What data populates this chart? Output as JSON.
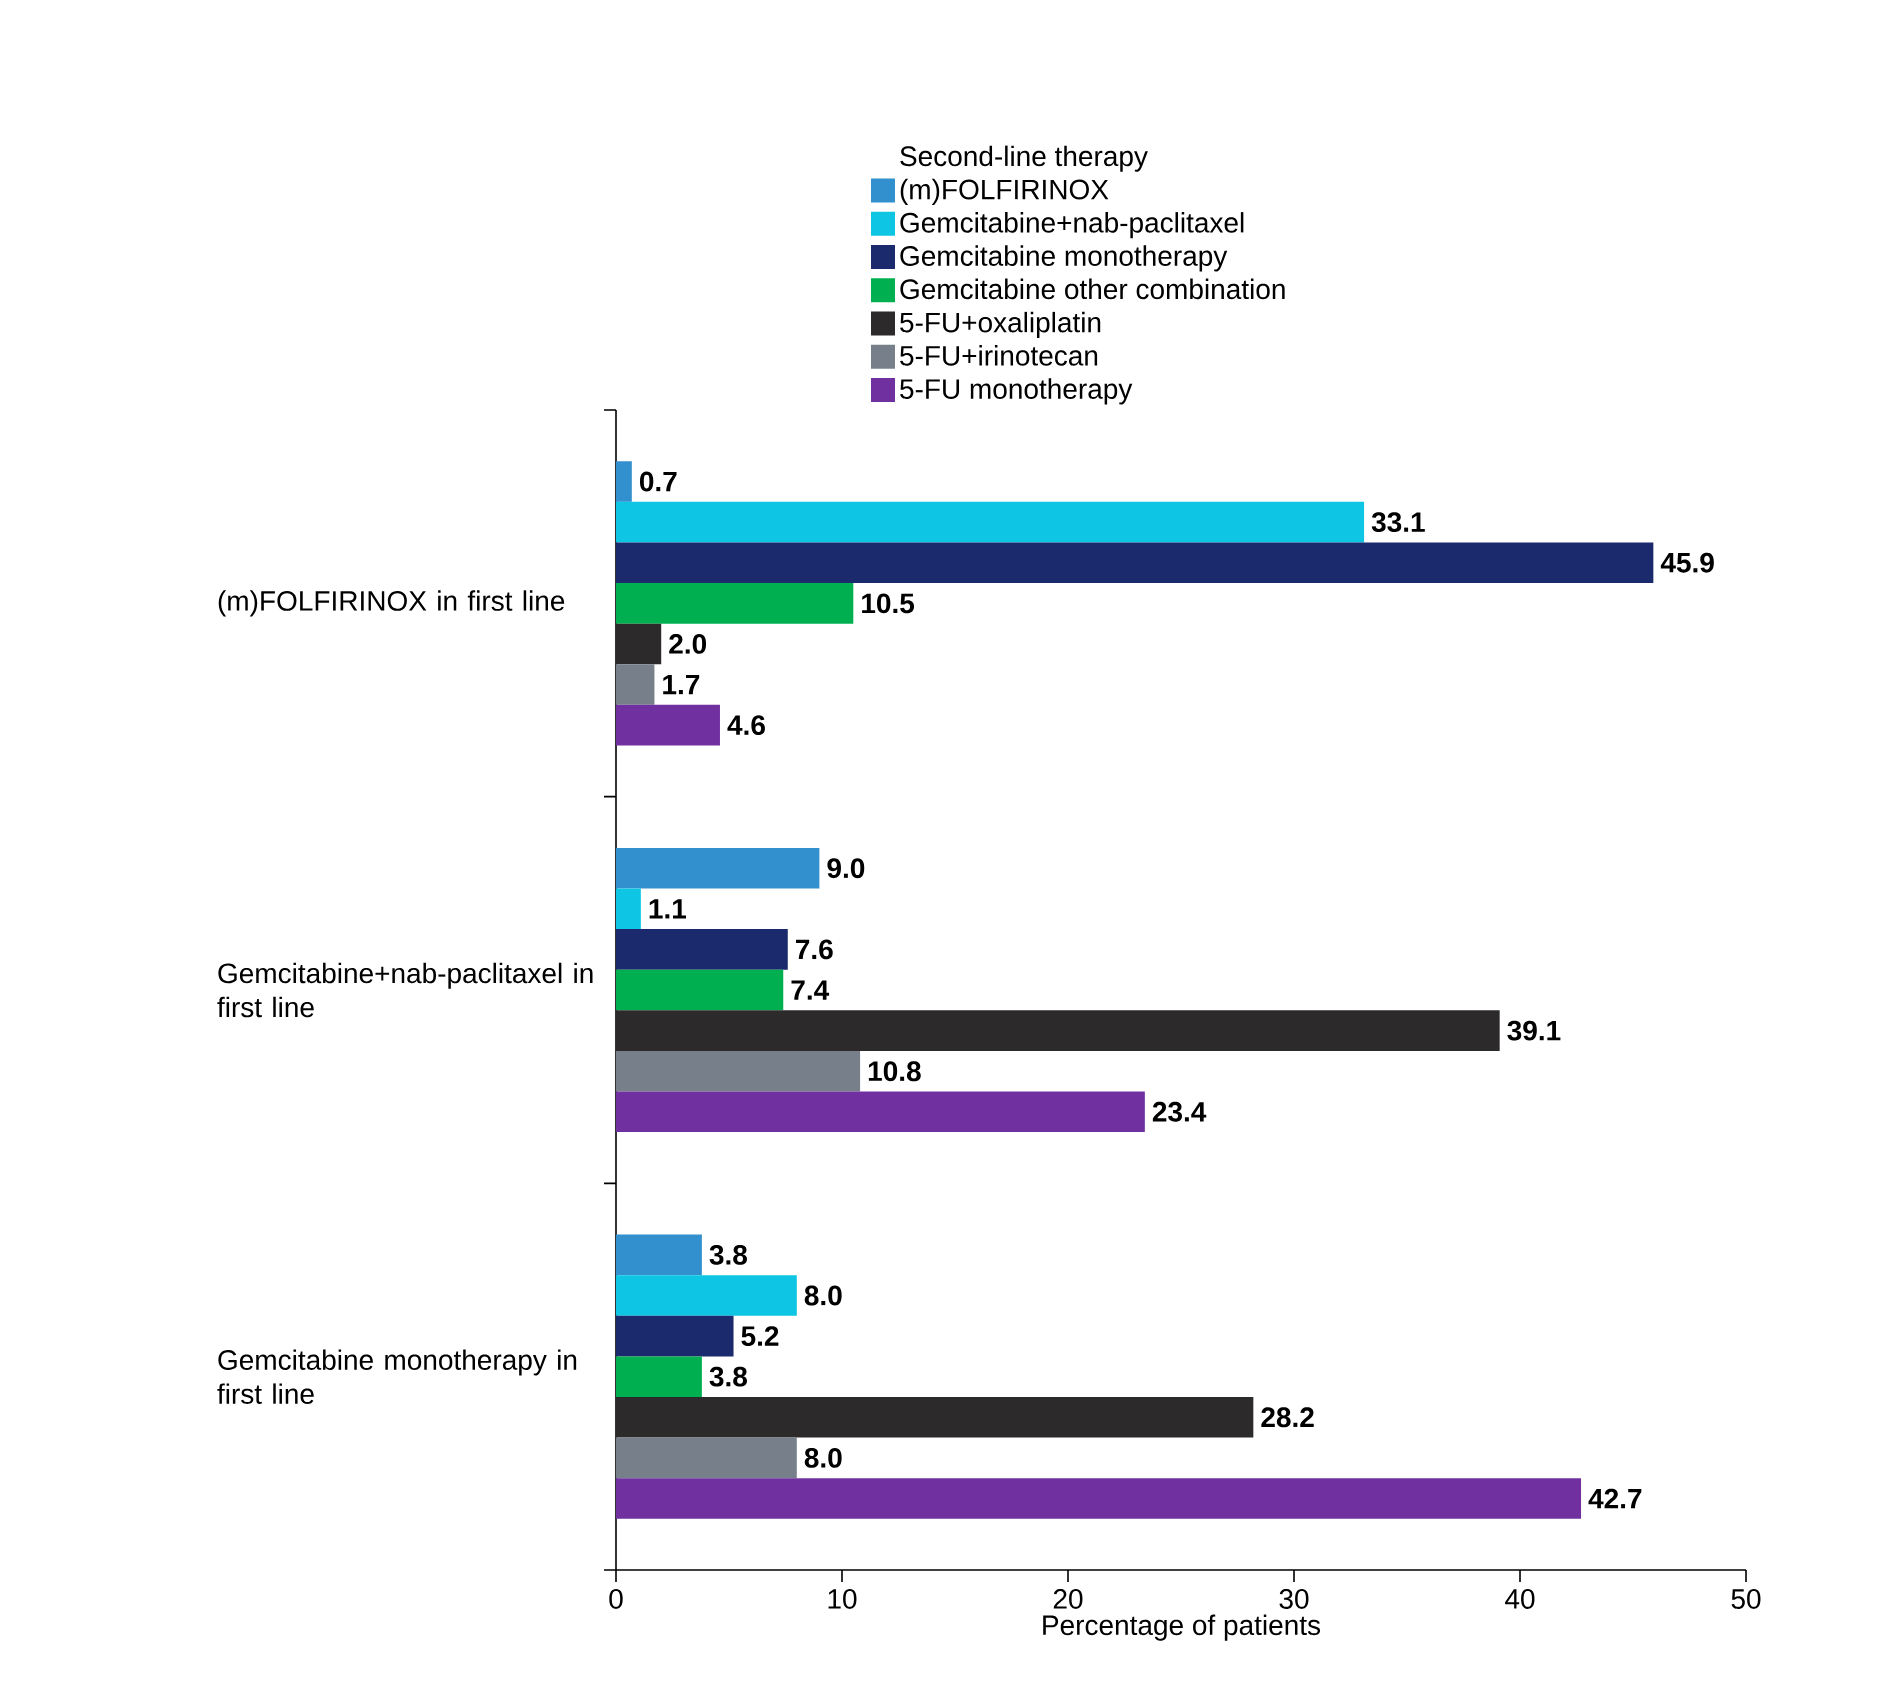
{
  "chart_data": {
    "type": "bar",
    "orientation": "horizontal",
    "legend_title": "Second-line therapy",
    "xlabel": "Percentage of patients",
    "categories": [
      "(m)FOLFIRINOX in first line",
      "Gemcitabine+nab-paclitaxel in first line",
      "Gemcitabine monotherapy in first line"
    ],
    "series": [
      {
        "name": "(m)FOLFIRINOX",
        "color": "#3390cf",
        "values": [
          0.7,
          9.0,
          3.8
        ],
        "value_labels": [
          "0.7",
          "9.0",
          "3.8"
        ]
      },
      {
        "name": "Gemcitabine+nab-paclitaxel",
        "color": "#0ec6e3",
        "values": [
          33.1,
          1.1,
          8.0
        ],
        "value_labels": [
          "33.1",
          "1.1",
          "8.0"
        ]
      },
      {
        "name": "Gemcitabine monotherapy",
        "color": "#1a2a6c",
        "values": [
          45.9,
          7.6,
          5.2
        ],
        "value_labels": [
          "45.9",
          "7.6",
          "5.2"
        ]
      },
      {
        "name": "Gemcitabine other combination",
        "color": "#00b050",
        "values": [
          10.5,
          7.4,
          3.8
        ],
        "value_labels": [
          "10.5",
          "7.4",
          "3.8"
        ]
      },
      {
        "name": "5-FU+oxaliplatin",
        "color": "#2d2a2b",
        "values": [
          2.0,
          39.1,
          28.2
        ],
        "value_labels": [
          "2.0",
          "39.1",
          "28.2"
        ]
      },
      {
        "name": "5-FU+irinotecan",
        "color": "#77808a",
        "values": [
          1.7,
          10.8,
          8.0
        ],
        "value_labels": [
          "1.7",
          "10.8",
          "8.0"
        ]
      },
      {
        "name": "5-FU monotherapy",
        "color": "#7030a0",
        "values": [
          4.6,
          23.4,
          42.7
        ],
        "value_labels": [
          "4.6",
          "23.4",
          "42.7"
        ]
      }
    ],
    "xlim": [
      0,
      50
    ],
    "xticks": [
      0,
      10,
      20,
      30,
      40,
      50
    ],
    "legend": "top",
    "grid": false
  }
}
